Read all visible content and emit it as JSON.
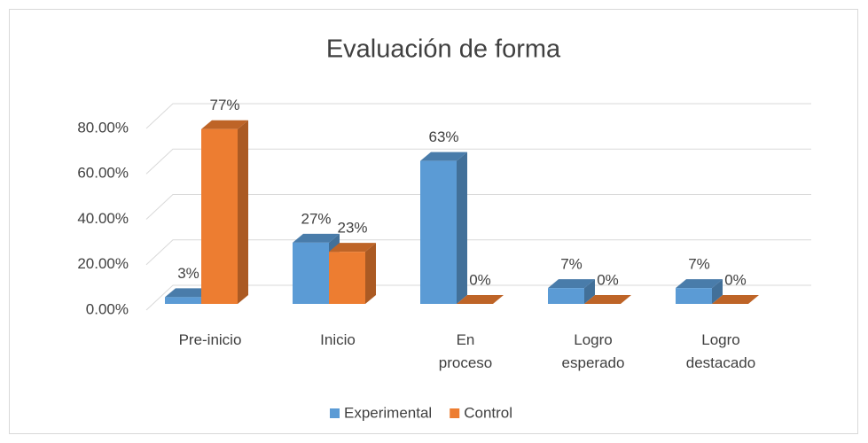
{
  "chart_data": {
    "type": "bar3d",
    "title": "Evaluación de forma",
    "categories": [
      "Pre-inicio",
      "Inicio",
      "En proceso",
      "Logro esperado",
      "Logro destacado"
    ],
    "series": [
      {
        "name": "Experimental",
        "color": "#5b9bd5",
        "values": [
          3,
          27,
          63,
          7,
          7
        ],
        "value_labels": [
          "3%",
          "27%",
          "63%",
          "7%",
          "7%"
        ]
      },
      {
        "name": "Control",
        "color": "#ed7d31",
        "values": [
          77,
          23,
          0,
          0,
          0
        ],
        "value_labels": [
          "77%",
          "23%",
          "0%",
          "0%",
          "0%"
        ]
      }
    ],
    "ylim": [
      0,
      80
    ],
    "yticks": [
      {
        "value": 0,
        "label": "0.00%"
      },
      {
        "value": 20,
        "label": "20.00%"
      },
      {
        "value": 40,
        "label": "40.00%"
      },
      {
        "value": 60,
        "label": "60.00%"
      },
      {
        "value": 80,
        "label": "80.00%"
      }
    ],
    "grid": true,
    "legend": "bottom"
  }
}
